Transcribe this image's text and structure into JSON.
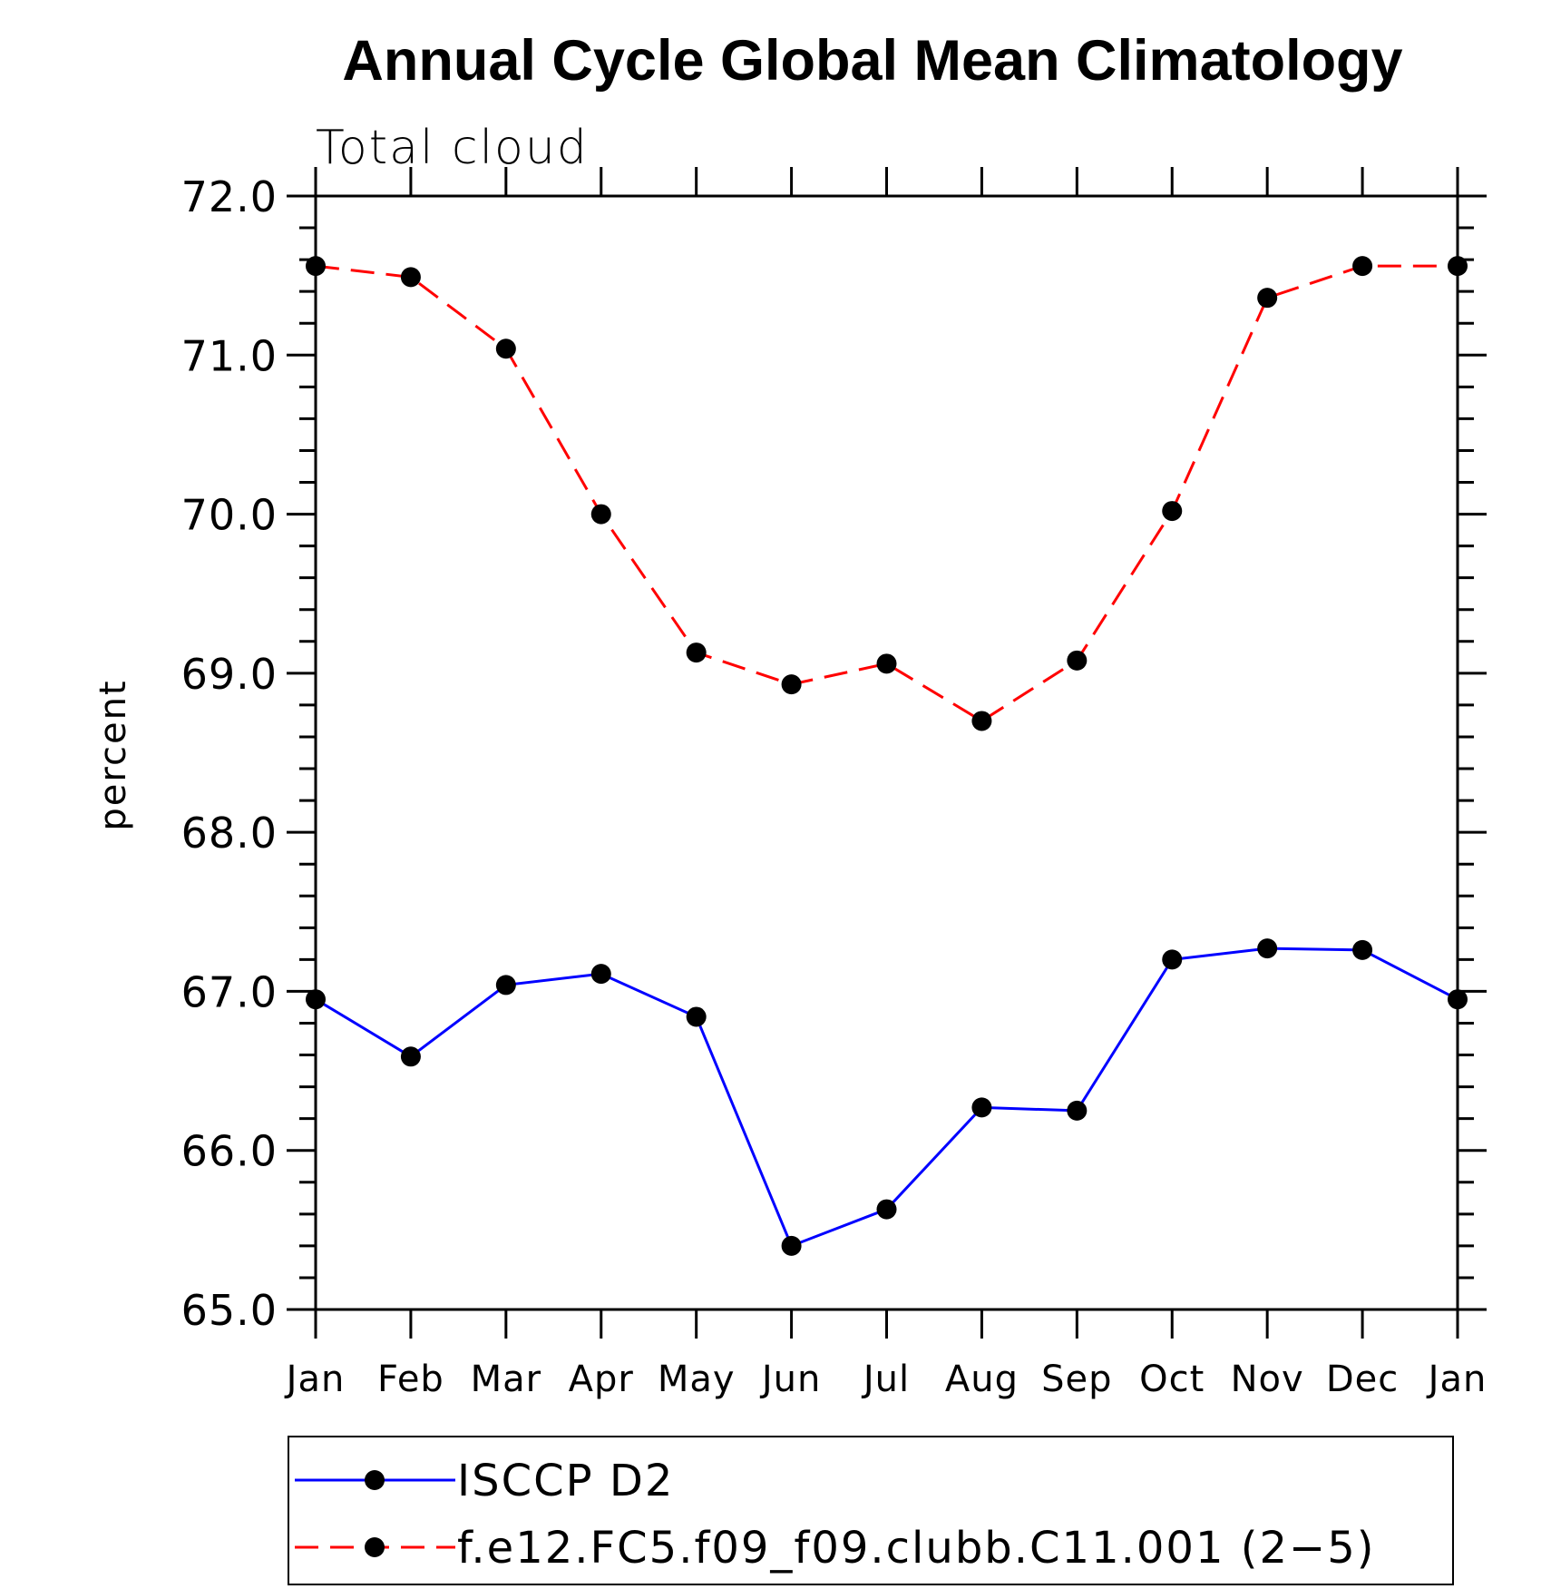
{
  "chart_data": {
    "type": "line",
    "title": "Annual Cycle Global Mean Climatology",
    "subtitle": "Total cloud",
    "xlabel": "",
    "ylabel": "percent",
    "ylim": [
      65.0,
      72.0
    ],
    "yticks": [
      "65.0",
      "66.0",
      "67.0",
      "68.0",
      "69.0",
      "70.0",
      "71.0",
      "72.0"
    ],
    "categories": [
      "Jan",
      "Feb",
      "Mar",
      "Apr",
      "May",
      "Jun",
      "Jul",
      "Aug",
      "Sep",
      "Oct",
      "Nov",
      "Dec",
      "Jan"
    ],
    "grid": false,
    "legend_position": "bottom",
    "series": [
      {
        "name": "ISCCP D2",
        "color": "#0000ff",
        "dashed": false,
        "marker": "filled-circle",
        "values": [
          66.95,
          66.59,
          67.04,
          67.11,
          66.84,
          65.4,
          65.63,
          66.27,
          66.25,
          67.2,
          67.27,
          67.26,
          66.95
        ]
      },
      {
        "name": "f.e12.FC5.f09_f09.clubb.C11.001 (2−5)",
        "color": "#ff0000",
        "dashed": true,
        "marker": "filled-circle",
        "values": [
          71.56,
          71.49,
          71.04,
          70.0,
          69.13,
          68.93,
          69.06,
          68.7,
          69.08,
          70.02,
          71.36,
          71.56,
          71.56
        ]
      }
    ]
  }
}
